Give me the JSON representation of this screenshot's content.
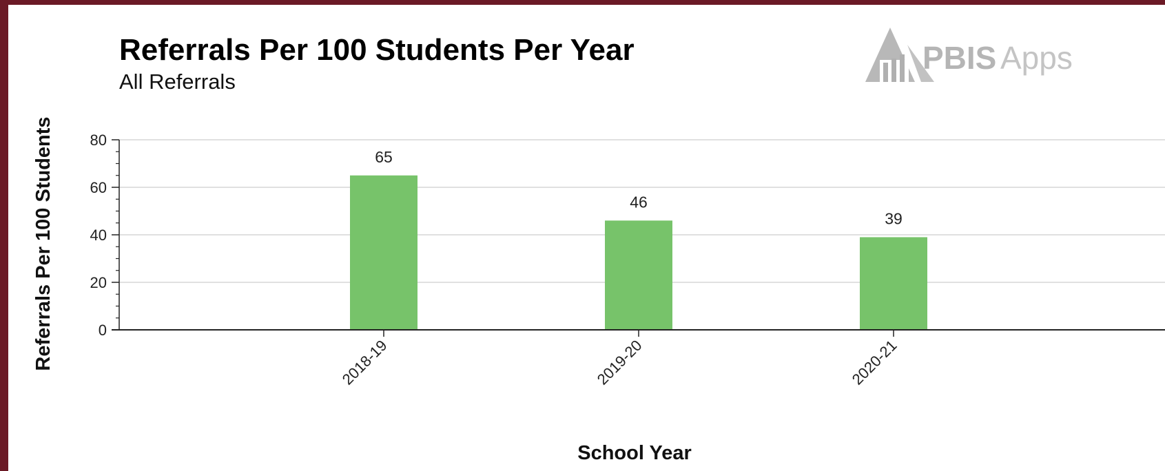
{
  "logo": {
    "text_bold": "PBIS",
    "text_light": "Apps"
  },
  "chart_data": {
    "type": "bar",
    "title": "Referrals Per 100 Students Per Year",
    "subtitle": "All Referrals",
    "xlabel": "School Year",
    "ylabel": "Referrals Per 100 Students",
    "categories": [
      "2018-19",
      "2019-20",
      "2020-21"
    ],
    "values": [
      65,
      46,
      39
    ],
    "value_labels": [
      "65",
      "46",
      "39"
    ],
    "ylim": [
      0,
      80
    ],
    "yticks": [
      0,
      20,
      40,
      60,
      80
    ],
    "ytick_labels": [
      "0",
      "20",
      "40",
      "60",
      "80"
    ],
    "grid": true,
    "legend": "none",
    "bar_color": "#77c36a"
  }
}
